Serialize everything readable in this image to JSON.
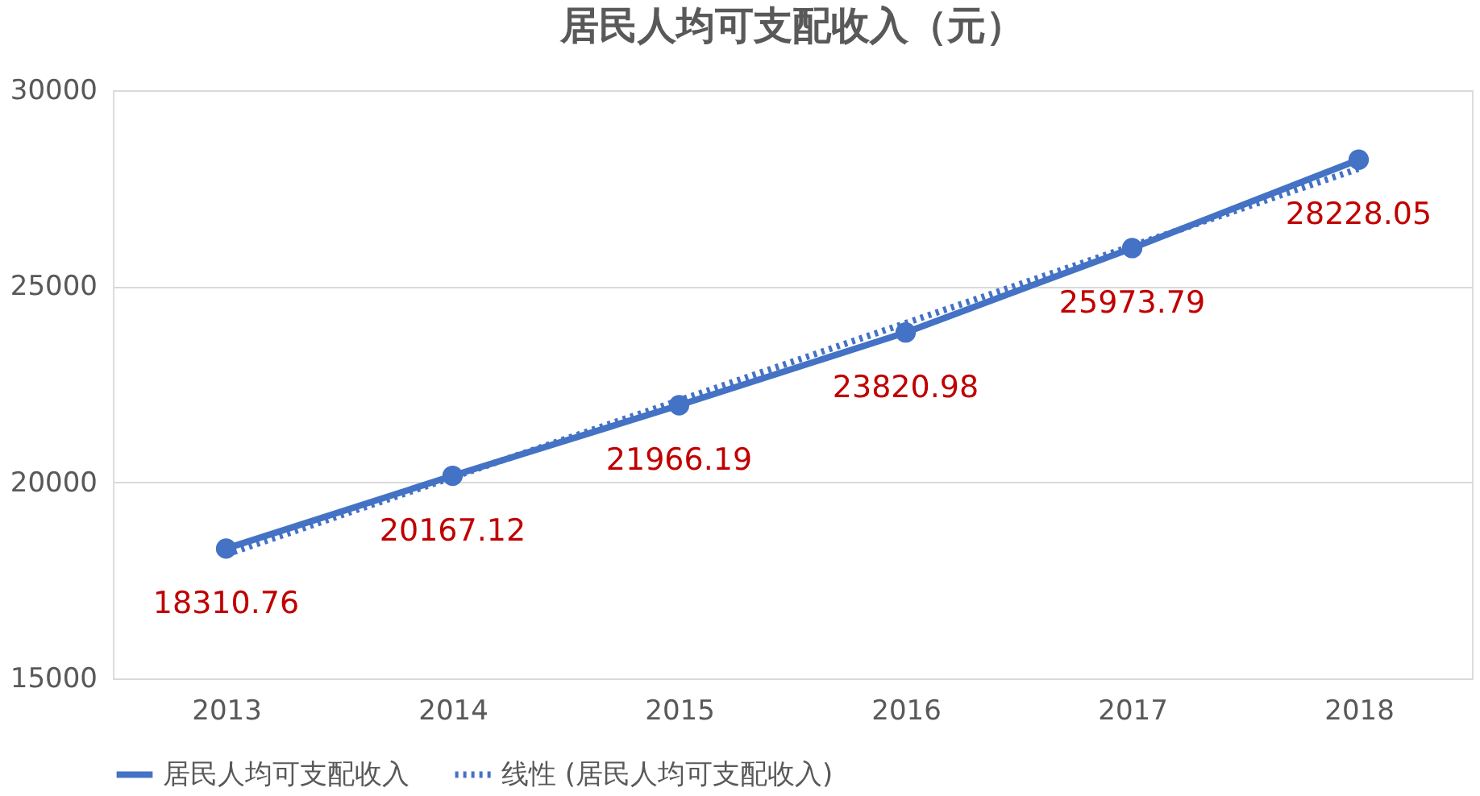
{
  "chart_data": {
    "type": "line",
    "title": "居民人均可支配收入（元）",
    "categories": [
      "2013",
      "2014",
      "2015",
      "2016",
      "2017",
      "2018"
    ],
    "series": [
      {
        "name": "居民人均可支配收入",
        "color": "#4472c4",
        "marker": "circle",
        "line_style": "solid",
        "values": [
          18310.76,
          20167.12,
          21966.19,
          23820.98,
          25973.79,
          28228.05
        ],
        "value_labels": [
          "18310.76",
          "20167.12",
          "21966.19",
          "23820.98",
          "25973.79",
          "28228.05"
        ]
      },
      {
        "name": "线性 (居民人均可支配收入)",
        "color": "#4472c4",
        "marker": "none",
        "line_style": "dotted",
        "values": [
          18160,
          20130,
          22090,
          24060,
          26030,
          28000
        ]
      }
    ],
    "ylim": [
      15000,
      30000
    ],
    "yticks": [
      15000,
      20000,
      25000,
      30000
    ],
    "grid": "y",
    "legend": "bottom"
  }
}
